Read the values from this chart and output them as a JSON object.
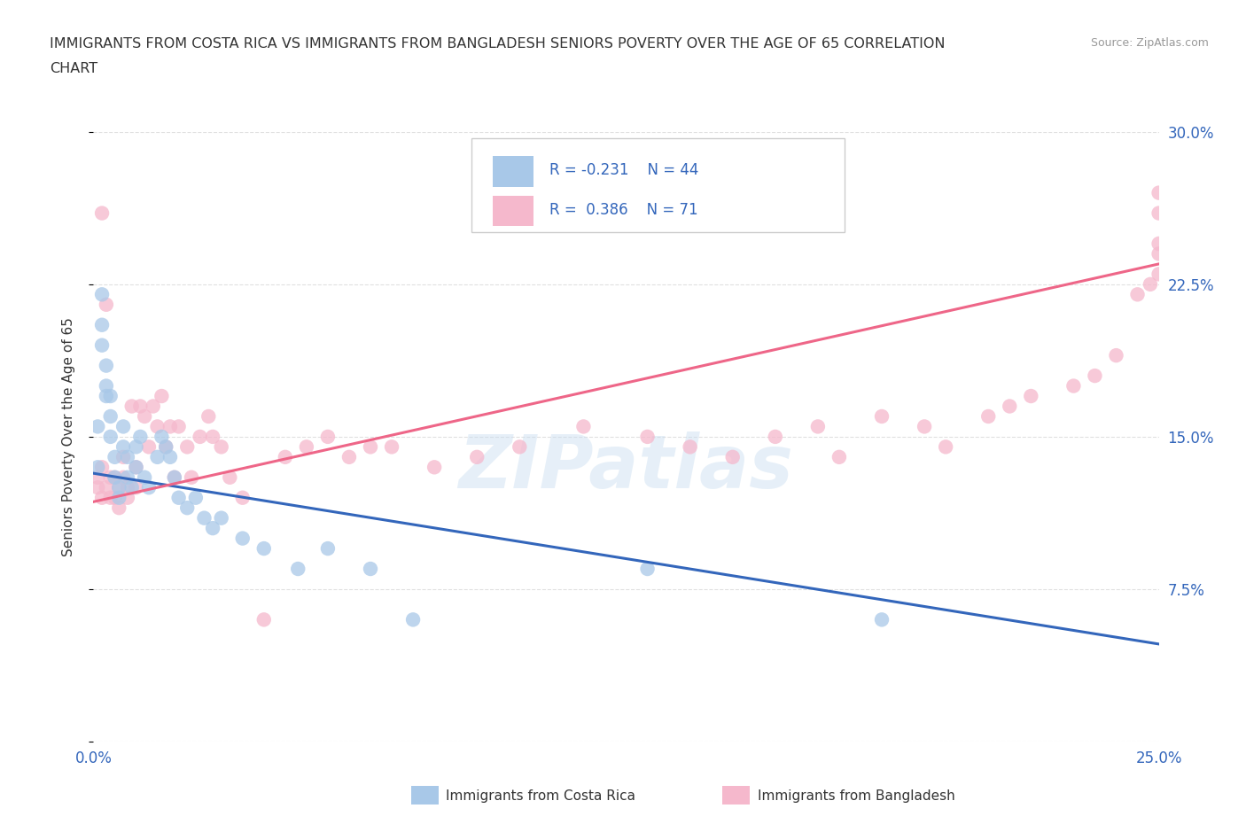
{
  "title_line1": "IMMIGRANTS FROM COSTA RICA VS IMMIGRANTS FROM BANGLADESH SENIORS POVERTY OVER THE AGE OF 65 CORRELATION",
  "title_line2": "CHART",
  "source": "Source: ZipAtlas.com",
  "ylabel": "Seniors Poverty Over the Age of 65",
  "xmin": 0.0,
  "xmax": 0.25,
  "ymin": 0.0,
  "ymax": 0.3,
  "xtick_pos": [
    0.0,
    0.05,
    0.1,
    0.15,
    0.2,
    0.25
  ],
  "xticklabels": [
    "0.0%",
    "",
    "",
    "",
    "",
    "25.0%"
  ],
  "ytick_labels_right": [
    "",
    "7.5%",
    "15.0%",
    "22.5%",
    "30.0%"
  ],
  "ytick_positions": [
    0.0,
    0.075,
    0.15,
    0.225,
    0.3
  ],
  "legend_r1": "-0.231",
  "legend_n1": "44",
  "legend_r2": "0.386",
  "legend_n2": "71",
  "color_costa_rica": "#a8c8e8",
  "color_bangladesh": "#f5b8cc",
  "color_line_costa_rica": "#3366bb",
  "color_line_bangladesh": "#ee6688",
  "label_costa_rica": "Immigrants from Costa Rica",
  "label_bangladesh": "Immigrants from Bangladesh",
  "cr_line_x0": 0.0,
  "cr_line_x1": 0.25,
  "cr_line_y0": 0.132,
  "cr_line_y1": 0.048,
  "bd_line_x0": 0.0,
  "bd_line_x1": 0.25,
  "bd_line_y0": 0.118,
  "bd_line_y1": 0.235,
  "costa_rica_x": [
    0.001,
    0.001,
    0.002,
    0.002,
    0.002,
    0.003,
    0.003,
    0.003,
    0.004,
    0.004,
    0.004,
    0.005,
    0.005,
    0.006,
    0.006,
    0.007,
    0.007,
    0.008,
    0.008,
    0.009,
    0.01,
    0.01,
    0.011,
    0.012,
    0.013,
    0.015,
    0.016,
    0.017,
    0.018,
    0.019,
    0.02,
    0.022,
    0.024,
    0.026,
    0.028,
    0.03,
    0.035,
    0.04,
    0.048,
    0.055,
    0.065,
    0.075,
    0.13,
    0.185
  ],
  "costa_rica_y": [
    0.135,
    0.155,
    0.195,
    0.205,
    0.22,
    0.185,
    0.175,
    0.17,
    0.15,
    0.16,
    0.17,
    0.13,
    0.14,
    0.12,
    0.125,
    0.145,
    0.155,
    0.13,
    0.14,
    0.125,
    0.135,
    0.145,
    0.15,
    0.13,
    0.125,
    0.14,
    0.15,
    0.145,
    0.14,
    0.13,
    0.12,
    0.115,
    0.12,
    0.11,
    0.105,
    0.11,
    0.1,
    0.095,
    0.085,
    0.095,
    0.085,
    0.06,
    0.085,
    0.06
  ],
  "bangladesh_x": [
    0.001,
    0.001,
    0.002,
    0.002,
    0.002,
    0.003,
    0.003,
    0.004,
    0.004,
    0.005,
    0.005,
    0.006,
    0.006,
    0.007,
    0.007,
    0.008,
    0.008,
    0.009,
    0.01,
    0.01,
    0.011,
    0.012,
    0.013,
    0.014,
    0.015,
    0.016,
    0.017,
    0.018,
    0.019,
    0.02,
    0.022,
    0.023,
    0.025,
    0.027,
    0.028,
    0.03,
    0.032,
    0.035,
    0.04,
    0.045,
    0.05,
    0.055,
    0.06,
    0.065,
    0.07,
    0.08,
    0.09,
    0.1,
    0.115,
    0.13,
    0.14,
    0.15,
    0.16,
    0.17,
    0.175,
    0.185,
    0.195,
    0.2,
    0.21,
    0.215,
    0.22,
    0.23,
    0.235,
    0.24,
    0.245,
    0.248,
    0.25,
    0.25,
    0.25,
    0.25,
    0.25
  ],
  "bangladesh_y": [
    0.125,
    0.13,
    0.12,
    0.135,
    0.26,
    0.125,
    0.215,
    0.12,
    0.13,
    0.12,
    0.13,
    0.115,
    0.125,
    0.13,
    0.14,
    0.12,
    0.125,
    0.165,
    0.125,
    0.135,
    0.165,
    0.16,
    0.145,
    0.165,
    0.155,
    0.17,
    0.145,
    0.155,
    0.13,
    0.155,
    0.145,
    0.13,
    0.15,
    0.16,
    0.15,
    0.145,
    0.13,
    0.12,
    0.06,
    0.14,
    0.145,
    0.15,
    0.14,
    0.145,
    0.145,
    0.135,
    0.14,
    0.145,
    0.155,
    0.15,
    0.145,
    0.14,
    0.15,
    0.155,
    0.14,
    0.16,
    0.155,
    0.145,
    0.16,
    0.165,
    0.17,
    0.175,
    0.18,
    0.19,
    0.22,
    0.225,
    0.23,
    0.24,
    0.245,
    0.26,
    0.27
  ],
  "watermark": "ZIPatlas",
  "background_color": "#ffffff",
  "grid_color": "#e0e0e0"
}
